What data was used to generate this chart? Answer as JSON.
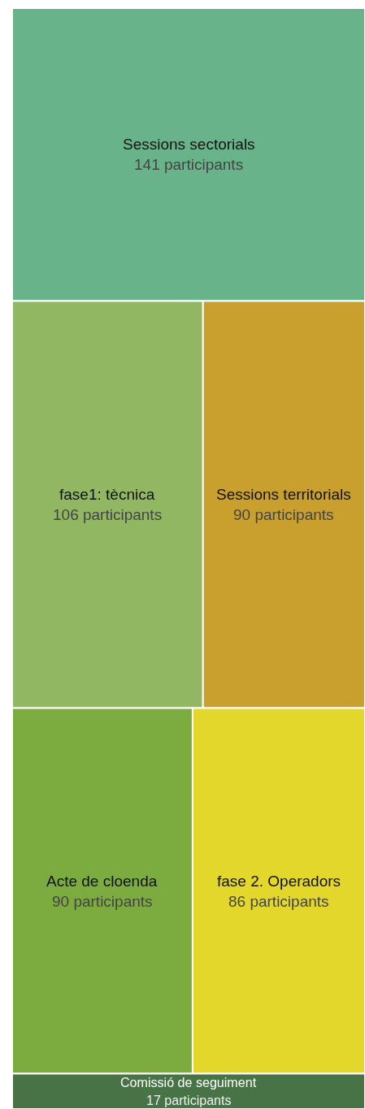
{
  "chart_data": {
    "type": "other",
    "categories": [
      "Sessions sectorials",
      "fase1: tècnica",
      "Sessions territorials",
      "Acte de cloenda",
      "fase 2. Operadors",
      "Comissió de seguiment"
    ],
    "values": [
      141,
      106,
      90,
      90,
      86,
      17
    ],
    "value_labels": [
      "141 participants",
      "106 participants",
      "90 participants",
      "90 participants",
      "86 participants",
      "17 participants"
    ],
    "colors": [
      "#69b38a",
      "#91b762",
      "#c9a02e",
      "#7cab40",
      "#e2d72a",
      "#487346"
    ]
  }
}
